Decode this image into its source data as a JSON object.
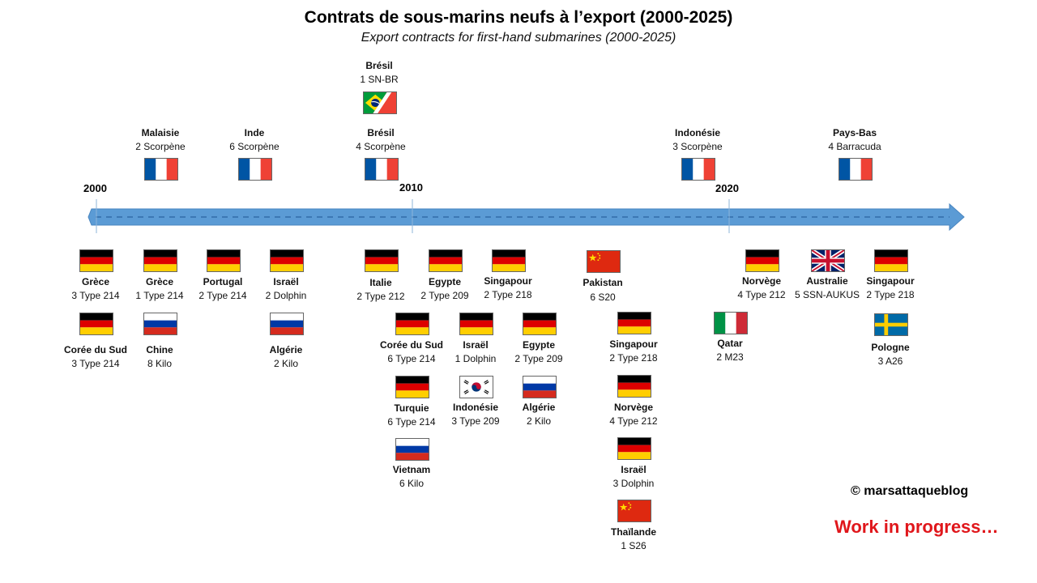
{
  "title": "Contrats de sous-marins neufs à l’export (2000-2025)",
  "subtitle": "Export contracts for first-hand submarines (2000-2025)",
  "years": [
    "2000",
    "2010",
    "2020"
  ],
  "colors": {
    "timeline": "#5b9bd5",
    "timeline_dash": "#3c78b4",
    "wip": "#e0161b"
  },
  "contracts": [
    {
      "country": "Brésil",
      "detail": "1 SN-BR",
      "flag": "brazil-france-flag"
    },
    {
      "country": "Malaisie",
      "detail": "2 Scorpène",
      "flag": "france-flag"
    },
    {
      "country": "Inde",
      "detail": "6 Scorpène",
      "flag": "france-flag"
    },
    {
      "country": "Brésil",
      "detail": "4 Scorpène",
      "flag": "france-flag"
    },
    {
      "country": "Indonésie",
      "detail": "3 Scorpène",
      "flag": "france-flag"
    },
    {
      "country": "Pays-Bas",
      "detail": "4 Barracuda",
      "flag": "france-flag"
    },
    {
      "country": "Grèce",
      "detail": "3 Type 214",
      "flag": "germany-flag"
    },
    {
      "country": "Grèce",
      "detail": "1 Type 214",
      "flag": "germany-flag"
    },
    {
      "country": "Portugal",
      "detail": "2 Type 214",
      "flag": "germany-flag"
    },
    {
      "country": "Israël",
      "detail": "2 Dolphin",
      "flag": "germany-flag"
    },
    {
      "country": "Corée du Sud",
      "detail": "3 Type 214",
      "flag": "germany-flag"
    },
    {
      "country": "Chine",
      "detail": "8 Kilo",
      "flag": "russia-flag"
    },
    {
      "country": "Algérie",
      "detail": "2 Kilo",
      "flag": "russia-flag"
    },
    {
      "country": "Italie",
      "detail": "2 Type 212",
      "flag": "germany-flag"
    },
    {
      "country": "Egypte",
      "detail": "2 Type 209",
      "flag": "germany-flag"
    },
    {
      "country": "Singapour",
      "detail": "2 Type 218",
      "flag": "germany-flag"
    },
    {
      "country": "Pakistan",
      "detail": "6 S20",
      "flag": "china-flag"
    },
    {
      "country": "Corée du Sud",
      "detail": "6 Type 214",
      "flag": "germany-flag"
    },
    {
      "country": "Israël",
      "detail": "1 Dolphin",
      "flag": "germany-flag"
    },
    {
      "country": "Egypte",
      "detail": "2 Type 209",
      "flag": "germany-flag"
    },
    {
      "country": "Singapour",
      "detail": "2 Type 218",
      "flag": "germany-flag"
    },
    {
      "country": "Turquie",
      "detail": "6 Type 214",
      "flag": "germany-flag"
    },
    {
      "country": "Indonésie",
      "detail": "3 Type 209",
      "flag": "south-korea-flag"
    },
    {
      "country": "Algérie",
      "detail": "2 Kilo",
      "flag": "russia-flag"
    },
    {
      "country": "Norvège",
      "detail": "4 Type 212",
      "flag": "germany-flag"
    },
    {
      "country": "Vietnam",
      "detail": "6 Kilo",
      "flag": "russia-flag"
    },
    {
      "country": "Israël",
      "detail": "3 Dolphin",
      "flag": "germany-flag"
    },
    {
      "country": "Thaïlande",
      "detail": "1 S26",
      "flag": "china-flag"
    },
    {
      "country": "Norvège",
      "detail": "4 Type 212",
      "flag": "germany-flag"
    },
    {
      "country": "Australie",
      "detail": "5 SSN-AUKUS",
      "flag": "uk-flag"
    },
    {
      "country": "Singapour",
      "detail": "2 Type 218",
      "flag": "germany-flag"
    },
    {
      "country": "Qatar",
      "detail": "2 M23",
      "flag": "italy-flag"
    },
    {
      "country": "Pologne",
      "detail": "3 A26",
      "flag": "sweden-flag"
    }
  ],
  "copyright": "© marsattaqueblog",
  "wip": "Work in progress…"
}
